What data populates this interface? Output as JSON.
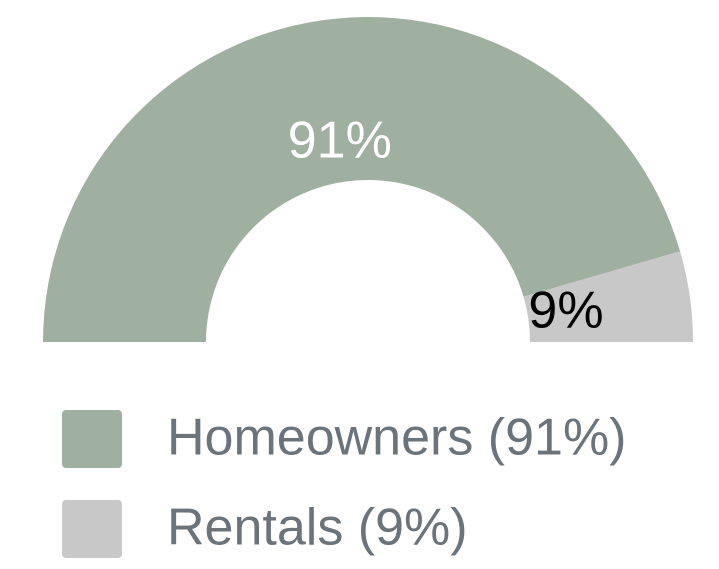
{
  "chart_data": {
    "type": "semi-donut",
    "categories": [
      "Homeowners (91%)",
      "Rentals (9%)"
    ],
    "values": [
      91,
      9
    ],
    "value_labels": [
      "91%",
      "9%"
    ],
    "colors": [
      "#a0b0a0",
      "#c8c8c8"
    ],
    "label_colors": [
      "#ffffff",
      "#000000"
    ]
  }
}
